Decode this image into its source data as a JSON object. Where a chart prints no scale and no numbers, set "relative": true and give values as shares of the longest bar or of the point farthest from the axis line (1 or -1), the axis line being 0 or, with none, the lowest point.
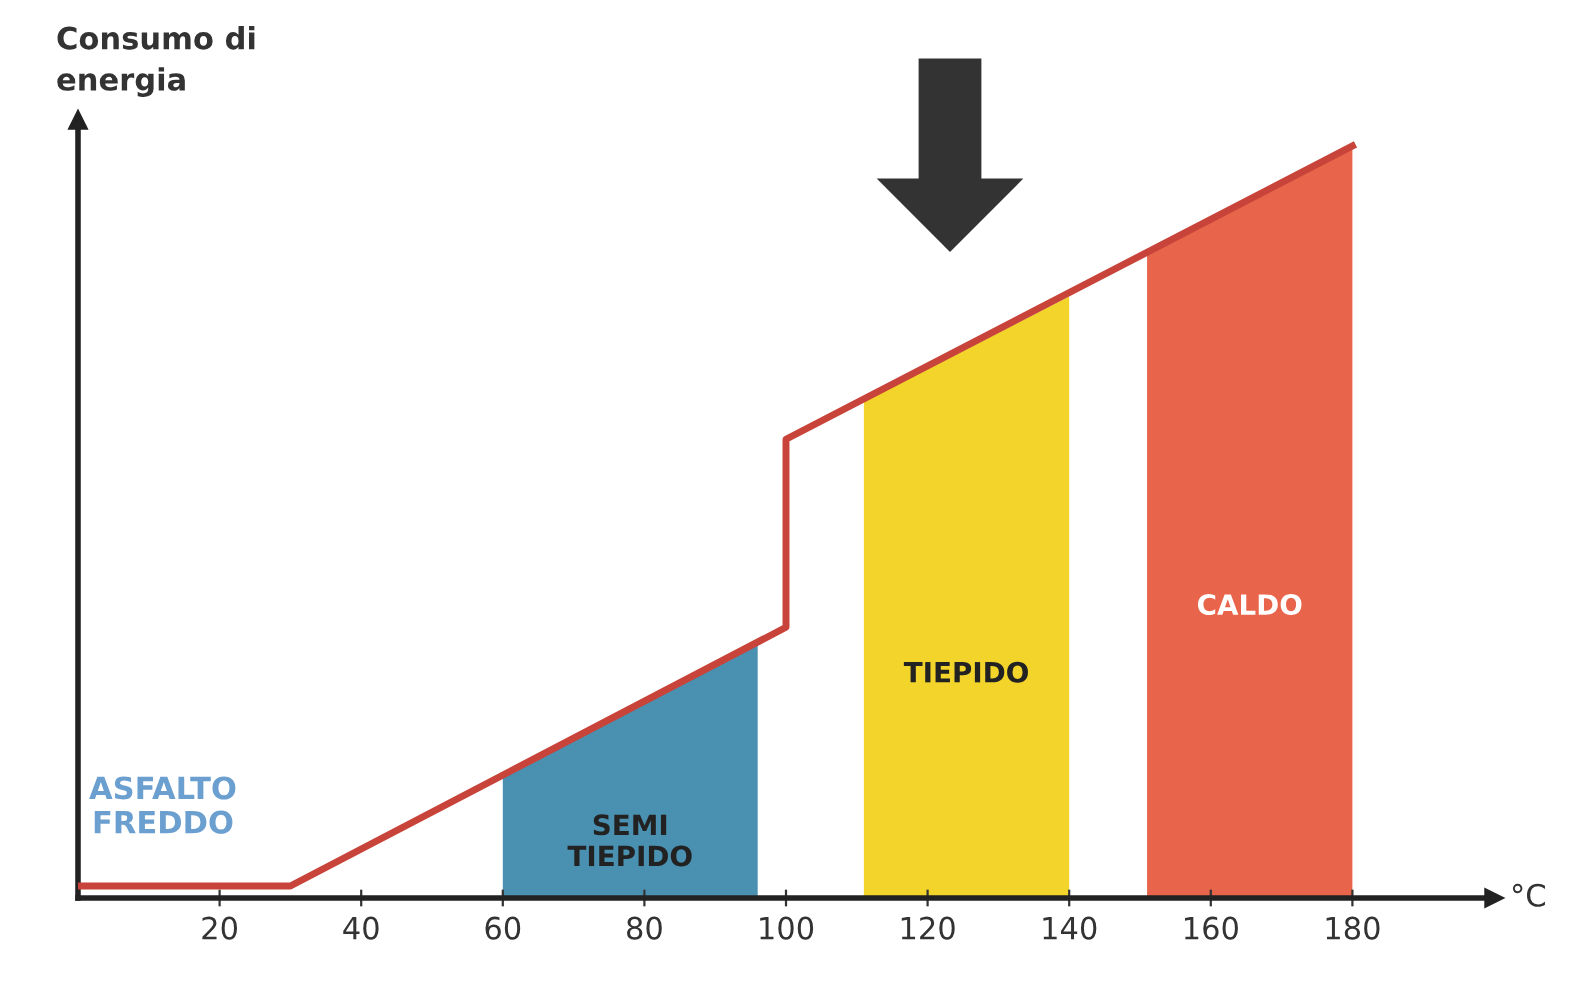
{
  "chart_data": {
    "type": "line",
    "relative": true,
    "xlabel": "°C",
    "ylabel": "Consumo di energia",
    "xlim": [
      0,
      200
    ],
    "xticks": [
      20,
      40,
      60,
      80,
      100,
      120,
      140,
      160,
      180
    ],
    "tick_labels": "x",
    "grid": false,
    "legend": false,
    "series": [
      {
        "type": "area",
        "name": "SEMI TIEPIDO",
        "color": "#4a90b0",
        "x": [
          60,
          96
        ],
        "values": [
          0.163,
          0.34
        ]
      },
      {
        "type": "area",
        "name": "TIEPIDO",
        "color": "#f2d42a",
        "x": [
          111,
          140
        ],
        "values": [
          0.66,
          0.8
        ]
      },
      {
        "type": "area",
        "name": "CALDO",
        "color": "#e8644a",
        "x": [
          151,
          180
        ],
        "values": [
          0.86,
          1.0
        ]
      },
      {
        "color": "#c8443a",
        "x": [
          0,
          30,
          100,
          100,
          180
        ],
        "values": [
          0.016,
          0.016,
          0.36,
          0.61,
          1.0
        ]
      }
    ],
    "annotations": [
      "ASFALTO FREDDO"
    ]
  }
}
